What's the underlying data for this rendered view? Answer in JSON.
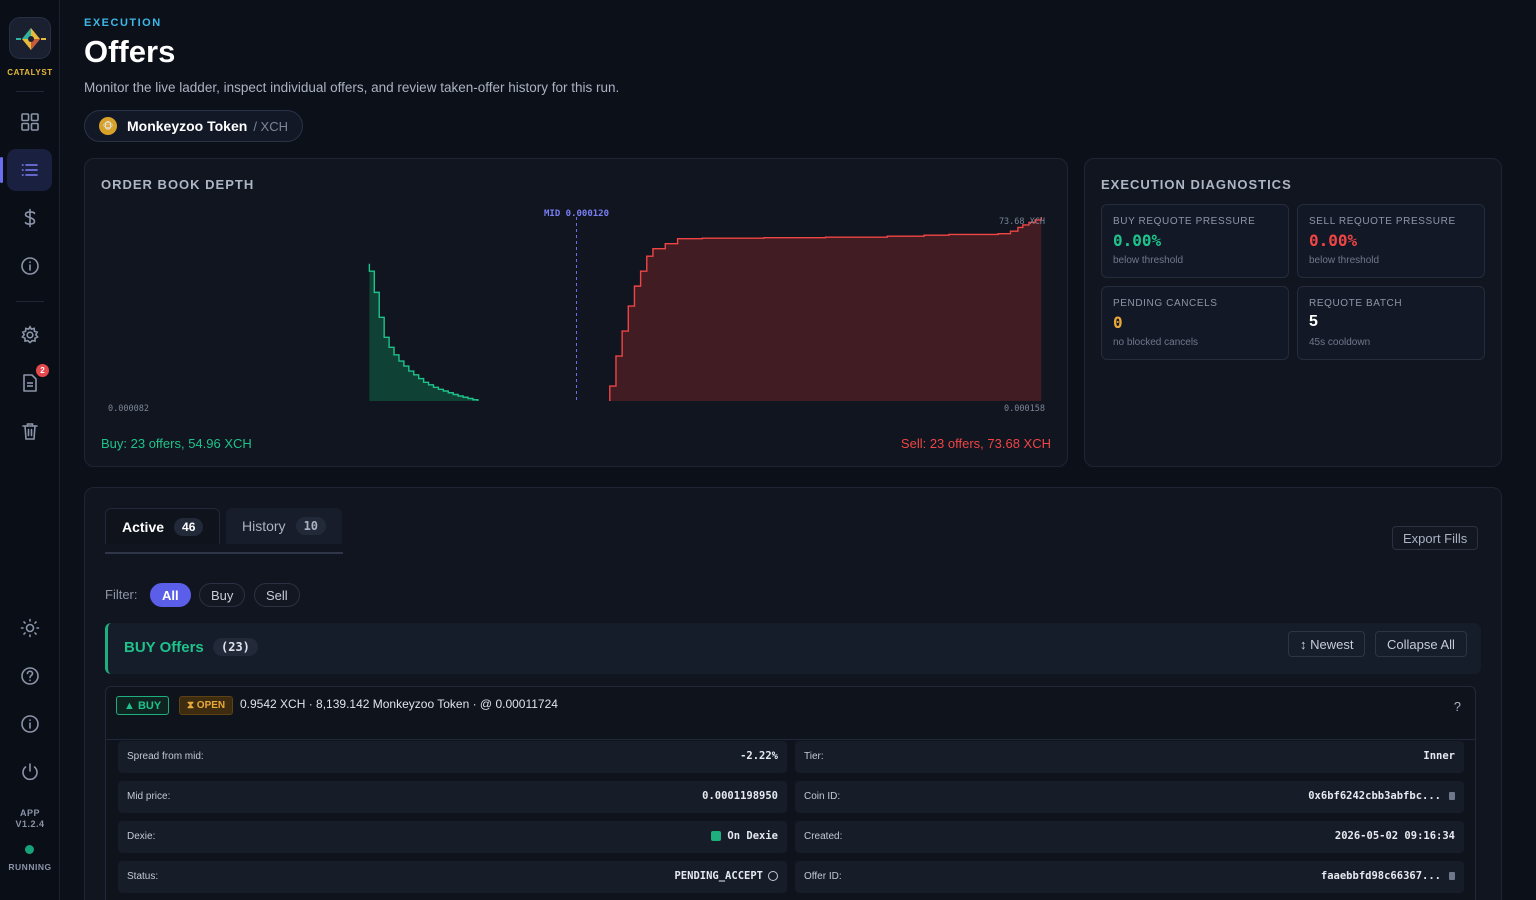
{
  "sidebar": {
    "brand": "CATALYST",
    "docs_badge": "2",
    "app_version": "APP\nV1.2.4",
    "app_version_line1": "APP",
    "app_version_line2": "V1.2.4",
    "status": "RUNNING",
    "status_color": "#16a37a",
    "icons": [
      "dashboard-icon",
      "list-icon",
      "dollar-icon",
      "info-icon",
      "gear-icon",
      "document-icon",
      "trash-icon",
      "sun-icon",
      "help-icon",
      "info-icon",
      "power-icon"
    ]
  },
  "header": {
    "eyebrow": "EXECUTION",
    "title": "Offers",
    "subtitle": "Monitor the live ladder, inspect individual offers, and review taken-offer history for this run.",
    "pair_name": "Monkeyzoo Token",
    "pair_quote": "/ XCH"
  },
  "depth": {
    "title": "ORDER BOOK DEPTH",
    "mid_label": "MID 0.000120",
    "max_label": "73.68 XCH",
    "x_min_label": "0.000082",
    "x_max_label": "0.000158",
    "buy_summary": "Buy: 23 offers, 54.96 XCH",
    "sell_summary": "Sell: 23 offers, 73.68 XCH",
    "buy_color": "#1fc28a",
    "sell_color": "#ef4545"
  },
  "chart_data": {
    "type": "area",
    "title": "ORDER BOOK DEPTH",
    "xlabel": "",
    "ylabel": "",
    "xlim": [
      8.2e-05,
      0.000158
    ],
    "ylim": [
      0,
      73.68
    ],
    "mid": 0.00012,
    "series": [
      {
        "name": "Buy",
        "x": [
          0.0001032,
          0.0001036,
          0.000104,
          0.0001044,
          0.0001048,
          0.0001052,
          0.0001056,
          0.000106,
          0.0001064,
          0.0001068,
          0.0001072,
          0.0001076,
          0.000108,
          0.0001084,
          0.0001088,
          0.0001092,
          0.0001096,
          0.00011,
          0.0001104,
          0.0001108,
          0.0001112,
          0.0001116,
          0.000112
        ],
        "values": [
          54.96,
          52.0,
          43.5,
          33.5,
          25.5,
          21.5,
          18.5,
          16.0,
          14.0,
          12.0,
          10.5,
          9.0,
          7.5,
          6.5,
          5.5,
          4.7,
          4.0,
          3.3,
          2.6,
          2.0,
          1.5,
          1.0,
          0.5
        ]
      },
      {
        "name": "Sell",
        "x": [
          0.0001227,
          0.0001232,
          0.0001237,
          0.0001242,
          0.0001247,
          0.0001252,
          0.0001257,
          0.0001262,
          0.0001272,
          0.0001282,
          0.0001302,
          0.0001352,
          0.0001402,
          0.0001452,
          0.0001482,
          0.0001502,
          0.0001542,
          0.0001552,
          0.0001558,
          0.0001562,
          0.0001567,
          0.0001572,
          0.0001577
        ],
        "values": [
          6.0,
          18.0,
          28.0,
          38.0,
          46.0,
          52.0,
          58.0,
          61.0,
          63.0,
          65.0,
          65.2,
          65.4,
          65.6,
          66.0,
          66.4,
          66.7,
          67.0,
          68.0,
          69.5,
          70.5,
          71.5,
          72.5,
          73.68
        ]
      }
    ]
  },
  "diagnostics": {
    "title": "EXECUTION DIAGNOSTICS",
    "cards": [
      {
        "label": "BUY REQUOTE PRESSURE",
        "value": "0.00%",
        "sub": "below threshold",
        "color": "#1fc28a"
      },
      {
        "label": "SELL REQUOTE PRESSURE",
        "value": "0.00%",
        "sub": "below threshold",
        "color": "#ef4545"
      },
      {
        "label": "PENDING CANCELS",
        "value": "0",
        "sub": "no blocked cancels",
        "color": "#e8a93a"
      },
      {
        "label": "REQUOTE BATCH",
        "value": "5",
        "sub": "45s cooldown",
        "color": "#ffffff"
      }
    ]
  },
  "offers": {
    "tabs": [
      {
        "label": "Active",
        "count": "46"
      },
      {
        "label": "History",
        "count": "10"
      }
    ],
    "export_label": "Export Fills",
    "filter_label": "Filter:",
    "filters": [
      "All",
      "Buy",
      "Sell"
    ],
    "group": {
      "title": "BUY Offers",
      "count": "(23)",
      "sort_label": "↕ Newest",
      "collapse_label": "Collapse All"
    },
    "card": {
      "side": "▲ BUY",
      "status": "⧗ OPEN",
      "summary": "0.9542 XCH · 8,139.142 Monkeyzoo Token · @ 0.00011724",
      "help": "?",
      "rows": [
        {
          "k": "Spread from mid:",
          "v": "-2.22%"
        },
        {
          "k": "Tier:",
          "v": "Inner"
        },
        {
          "k": "Mid price:",
          "v": "0.0001198950"
        },
        {
          "k": "Coin ID:",
          "v": "0x6bf6242cbb3abfbc..."
        },
        {
          "k": "Dexie:",
          "v": "On Dexie"
        },
        {
          "k": "Created:",
          "v": "2026-05-02 09:16:34"
        },
        {
          "k": "Status:",
          "v": "PENDING_ACCEPT"
        },
        {
          "k": "Offer ID:",
          "v": "faaebbfd98c66367..."
        }
      ]
    }
  }
}
